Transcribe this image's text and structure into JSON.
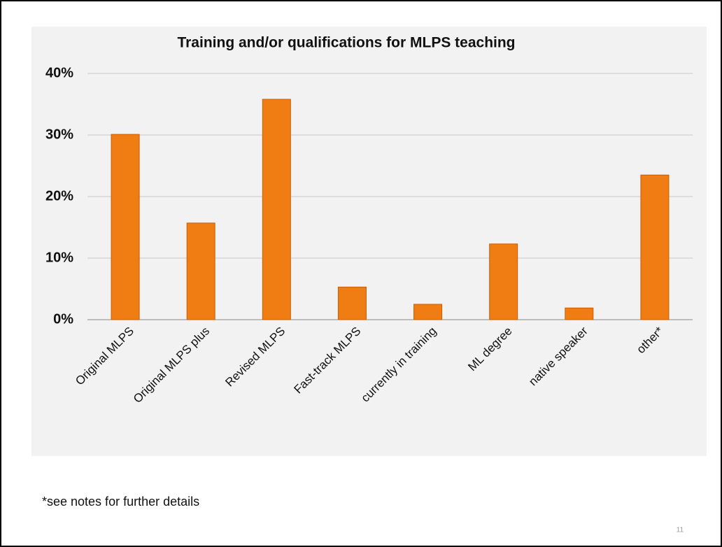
{
  "chart_data": {
    "type": "bar",
    "title": "Training and/or qualifications for MLPS teaching",
    "categories": [
      "Original MLPS",
      "Original MLPS plus",
      "Revised MLPS",
      "Fast-track MLPS",
      "currently in training",
      "ML degree",
      "native speaker",
      "other*"
    ],
    "values": [
      30.1,
      15.7,
      35.8,
      5.3,
      2.5,
      12.3,
      1.9,
      23.5
    ],
    "color": "#f07c14",
    "ylim": [
      0,
      40
    ],
    "yticks": [
      {
        "value": 0,
        "label": "0%"
      },
      {
        "value": 10,
        "label": "10%"
      },
      {
        "value": 20,
        "label": "20%"
      },
      {
        "value": 30,
        "label": "30%"
      },
      {
        "value": 40,
        "label": "40%"
      }
    ],
    "grid": true
  },
  "note": "*see notes for further details",
  "page_number": "11"
}
